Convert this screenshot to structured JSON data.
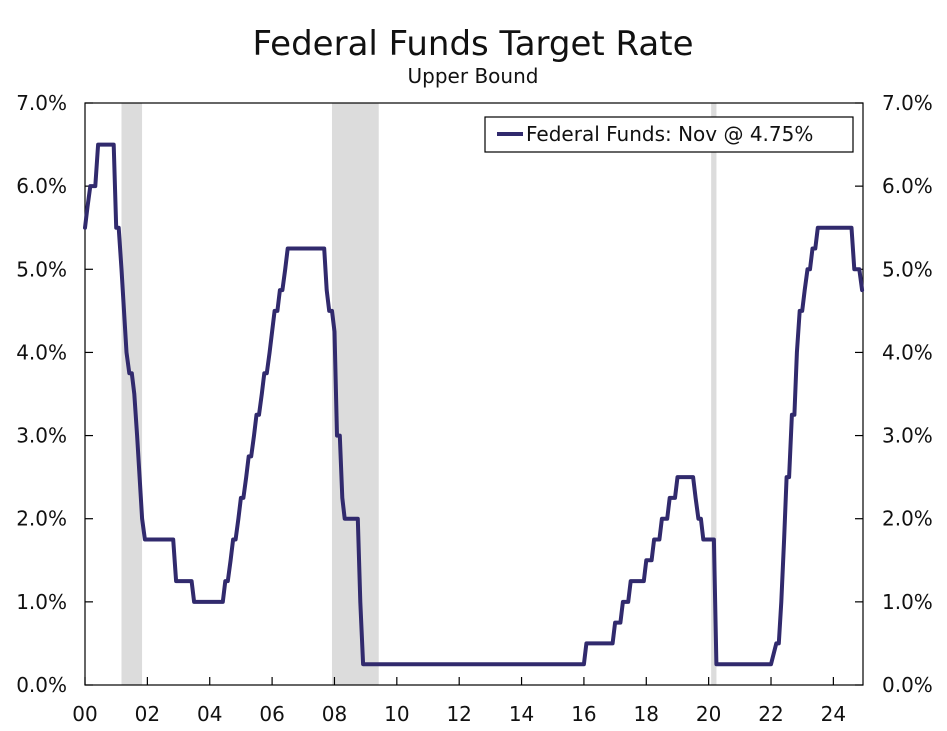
{
  "chart_data": {
    "type": "line",
    "title": "Federal Funds Target Rate",
    "subtitle": "Upper Bound",
    "xlabel": "",
    "ylabel": "",
    "xlim": [
      2000.0,
      2024.95
    ],
    "ylim": [
      0.0,
      7.0
    ],
    "y_ticks": [
      0.0,
      1.0,
      2.0,
      3.0,
      4.0,
      5.0,
      6.0,
      7.0
    ],
    "y_tick_labels": [
      "0.0%",
      "1.0%",
      "2.0%",
      "3.0%",
      "4.0%",
      "5.0%",
      "6.0%",
      "7.0%"
    ],
    "x_ticks": [
      2000,
      2002,
      2004,
      2006,
      2008,
      2010,
      2012,
      2014,
      2016,
      2018,
      2020,
      2022,
      2024
    ],
    "x_tick_labels": [
      "00",
      "02",
      "04",
      "06",
      "08",
      "10",
      "12",
      "14",
      "16",
      "18",
      "20",
      "22",
      "24"
    ],
    "grid": false,
    "legend_position": "top-right",
    "recessions": [
      {
        "start": 2001.17,
        "end": 2001.83
      },
      {
        "start": 2007.92,
        "end": 2009.42
      },
      {
        "start": 2020.08,
        "end": 2020.25
      }
    ],
    "series": [
      {
        "name": "Federal Funds: Nov @ 4.75%",
        "color": "#312a6d",
        "x": [
          2000.0,
          2000.08,
          2000.17,
          2000.25,
          2000.33,
          2000.42,
          2000.5,
          2000.92,
          2001.0,
          2001.08,
          2001.17,
          2001.25,
          2001.33,
          2001.42,
          2001.5,
          2001.58,
          2001.67,
          2001.75,
          2001.83,
          2001.92,
          2002.0,
          2002.83,
          2002.92,
          2003.42,
          2003.5,
          2004.42,
          2004.5,
          2004.58,
          2004.67,
          2004.75,
          2004.83,
          2004.92,
          2005.0,
          2005.08,
          2005.17,
          2005.25,
          2005.33,
          2005.42,
          2005.5,
          2005.58,
          2005.67,
          2005.75,
          2005.83,
          2005.92,
          2006.0,
          2006.08,
          2006.17,
          2006.25,
          2006.33,
          2006.42,
          2006.5,
          2007.67,
          2007.75,
          2007.83,
          2007.92,
          2008.0,
          2008.08,
          2008.17,
          2008.25,
          2008.33,
          2008.75,
          2008.83,
          2008.92,
          2016.0,
          2016.08,
          2016.92,
          2017.0,
          2017.17,
          2017.25,
          2017.42,
          2017.5,
          2017.92,
          2018.0,
          2018.17,
          2018.25,
          2018.42,
          2018.5,
          2018.67,
          2018.75,
          2018.92,
          2019.0,
          2019.5,
          2019.58,
          2019.67,
          2019.75,
          2019.83,
          2019.92,
          2020.17,
          2020.25,
          2022.0,
          2022.17,
          2022.25,
          2022.33,
          2022.42,
          2022.5,
          2022.58,
          2022.67,
          2022.75,
          2022.83,
          2022.92,
          2023.0,
          2023.08,
          2023.17,
          2023.25,
          2023.33,
          2023.42,
          2023.5,
          2023.58,
          2024.58,
          2024.67,
          2024.75,
          2024.83,
          2024.92
        ],
        "values": [
          5.5,
          5.75,
          6.0,
          6.0,
          6.0,
          6.5,
          6.5,
          6.5,
          5.5,
          5.5,
          5.0,
          4.5,
          4.0,
          3.75,
          3.75,
          3.5,
          3.0,
          2.5,
          2.0,
          1.75,
          1.75,
          1.75,
          1.25,
          1.25,
          1.0,
          1.0,
          1.25,
          1.25,
          1.5,
          1.75,
          1.75,
          2.0,
          2.25,
          2.25,
          2.5,
          2.75,
          2.75,
          3.0,
          3.25,
          3.25,
          3.5,
          3.75,
          3.75,
          4.0,
          4.25,
          4.5,
          4.5,
          4.75,
          4.75,
          5.0,
          5.25,
          5.25,
          4.75,
          4.5,
          4.5,
          4.25,
          3.0,
          3.0,
          2.25,
          2.0,
          2.0,
          1.0,
          0.25,
          0.25,
          0.5,
          0.5,
          0.75,
          0.75,
          1.0,
          1.0,
          1.25,
          1.25,
          1.5,
          1.5,
          1.75,
          1.75,
          2.0,
          2.0,
          2.25,
          2.25,
          2.5,
          2.5,
          2.25,
          2.0,
          2.0,
          1.75,
          1.75,
          1.75,
          0.25,
          0.25,
          0.5,
          0.5,
          1.0,
          1.75,
          2.5,
          2.5,
          3.25,
          3.25,
          4.0,
          4.5,
          4.5,
          4.75,
          5.0,
          5.0,
          5.25,
          5.25,
          5.5,
          5.5,
          5.5,
          5.0,
          5.0,
          5.0,
          4.75
        ]
      }
    ]
  }
}
